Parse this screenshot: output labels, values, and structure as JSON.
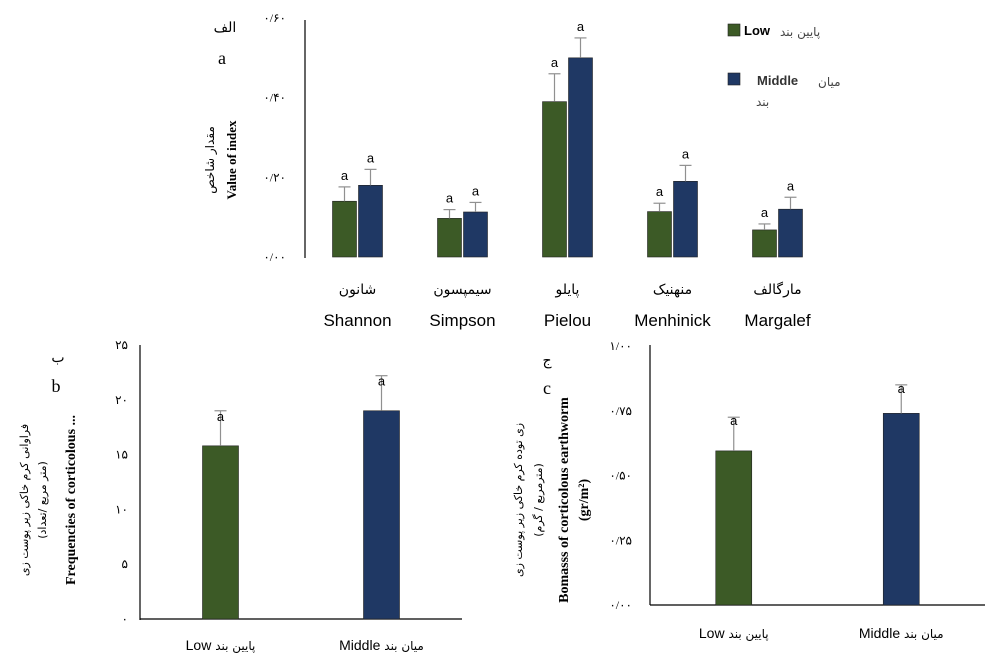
{
  "colors": {
    "low": "#3c5a26",
    "middle": "#1f3864",
    "axis": "#000000",
    "error": "#909090"
  },
  "chart_data": [
    {
      "type": "bar",
      "panel_label_fa": "الف",
      "panel_label": "a",
      "ylabel_fa": "مقدار شاخص",
      "ylabel": "Value of index",
      "ylim": [
        0,
        0.6
      ],
      "yticks": [
        "۰/۰۰",
        "۰/۲۰",
        "۰/۴۰",
        "۰/۶۰"
      ],
      "categories": [
        {
          "fa": "شانون",
          "en": "Shannon"
        },
        {
          "fa": "سیمپسون",
          "en": "Simpson"
        },
        {
          "fa": "پایلو",
          "en": "Pielou"
        },
        {
          "fa": "منهنیک",
          "en": "Menhinick"
        },
        {
          "fa": "مارگالف",
          "en": "Margalef"
        }
      ],
      "series": [
        {
          "name": "پایین بند",
          "name_en": "Low",
          "values": [
            0.14,
            0.097,
            0.39,
            0.114,
            0.068
          ],
          "errors": [
            0.036,
            0.022,
            0.07,
            0.021,
            0.015
          ],
          "sig": [
            "a",
            "a",
            "a",
            "a",
            "a"
          ]
        },
        {
          "name": "میان بند",
          "name_en": "Middle",
          "values": [
            0.18,
            0.113,
            0.5,
            0.19,
            0.12
          ],
          "errors": [
            0.04,
            0.024,
            0.05,
            0.04,
            0.03
          ],
          "sig": [
            "a",
            "a",
            "a",
            "a",
            "a"
          ]
        }
      ],
      "legend": [
        {
          "en": "Low",
          "fa": "پایین بند"
        },
        {
          "en": "Middle",
          "fa": "میان",
          "fa2": "بند"
        }
      ],
      "legend_position": "top-right"
    },
    {
      "type": "bar",
      "panel_label_fa": "ب",
      "panel_label": "b",
      "ylabel_fa": "فراوانی کرم خاکی زیر پوست زی",
      "ylabel_fa2": "(متر مربع /تعداد)",
      "ylabel": "Frequencies of corticolous ...",
      "ylim": [
        0,
        25
      ],
      "yticks": [
        "۰",
        "۵",
        "۱۰",
        "۱۵",
        "۲۰",
        "۲۵"
      ],
      "categories": [
        {
          "fa": "پایین بند",
          "en": "Low"
        },
        {
          "fa": "میان بند",
          "en": "Middle"
        }
      ],
      "values": [
        15.8,
        19.0
      ],
      "errors": [
        3.2,
        3.2
      ],
      "sig": [
        "a",
        "a"
      ]
    },
    {
      "type": "bar",
      "panel_label_fa": "ج",
      "panel_label": "c",
      "ylabel_fa": "زی توده کرم خاکی زیر پوست زی",
      "ylabel_fa2": "(مترمربع / گرم)",
      "ylabel": "Bomasss of corticolous earthworm",
      "ylabel2": "(gr/m²)",
      "ylim": [
        0,
        1.0
      ],
      "yticks": [
        "۰/۰۰",
        "۰/۲۵",
        "۰/۵۰",
        "۰/۷۵",
        "۱/۰۰"
      ],
      "categories": [
        {
          "fa": "پایین بند",
          "en": "Low"
        },
        {
          "fa": "میان بند",
          "en": "Middle"
        }
      ],
      "values": [
        0.595,
        0.74
      ],
      "errors": [
        0.13,
        0.11
      ],
      "sig": [
        "a",
        "a"
      ]
    }
  ]
}
